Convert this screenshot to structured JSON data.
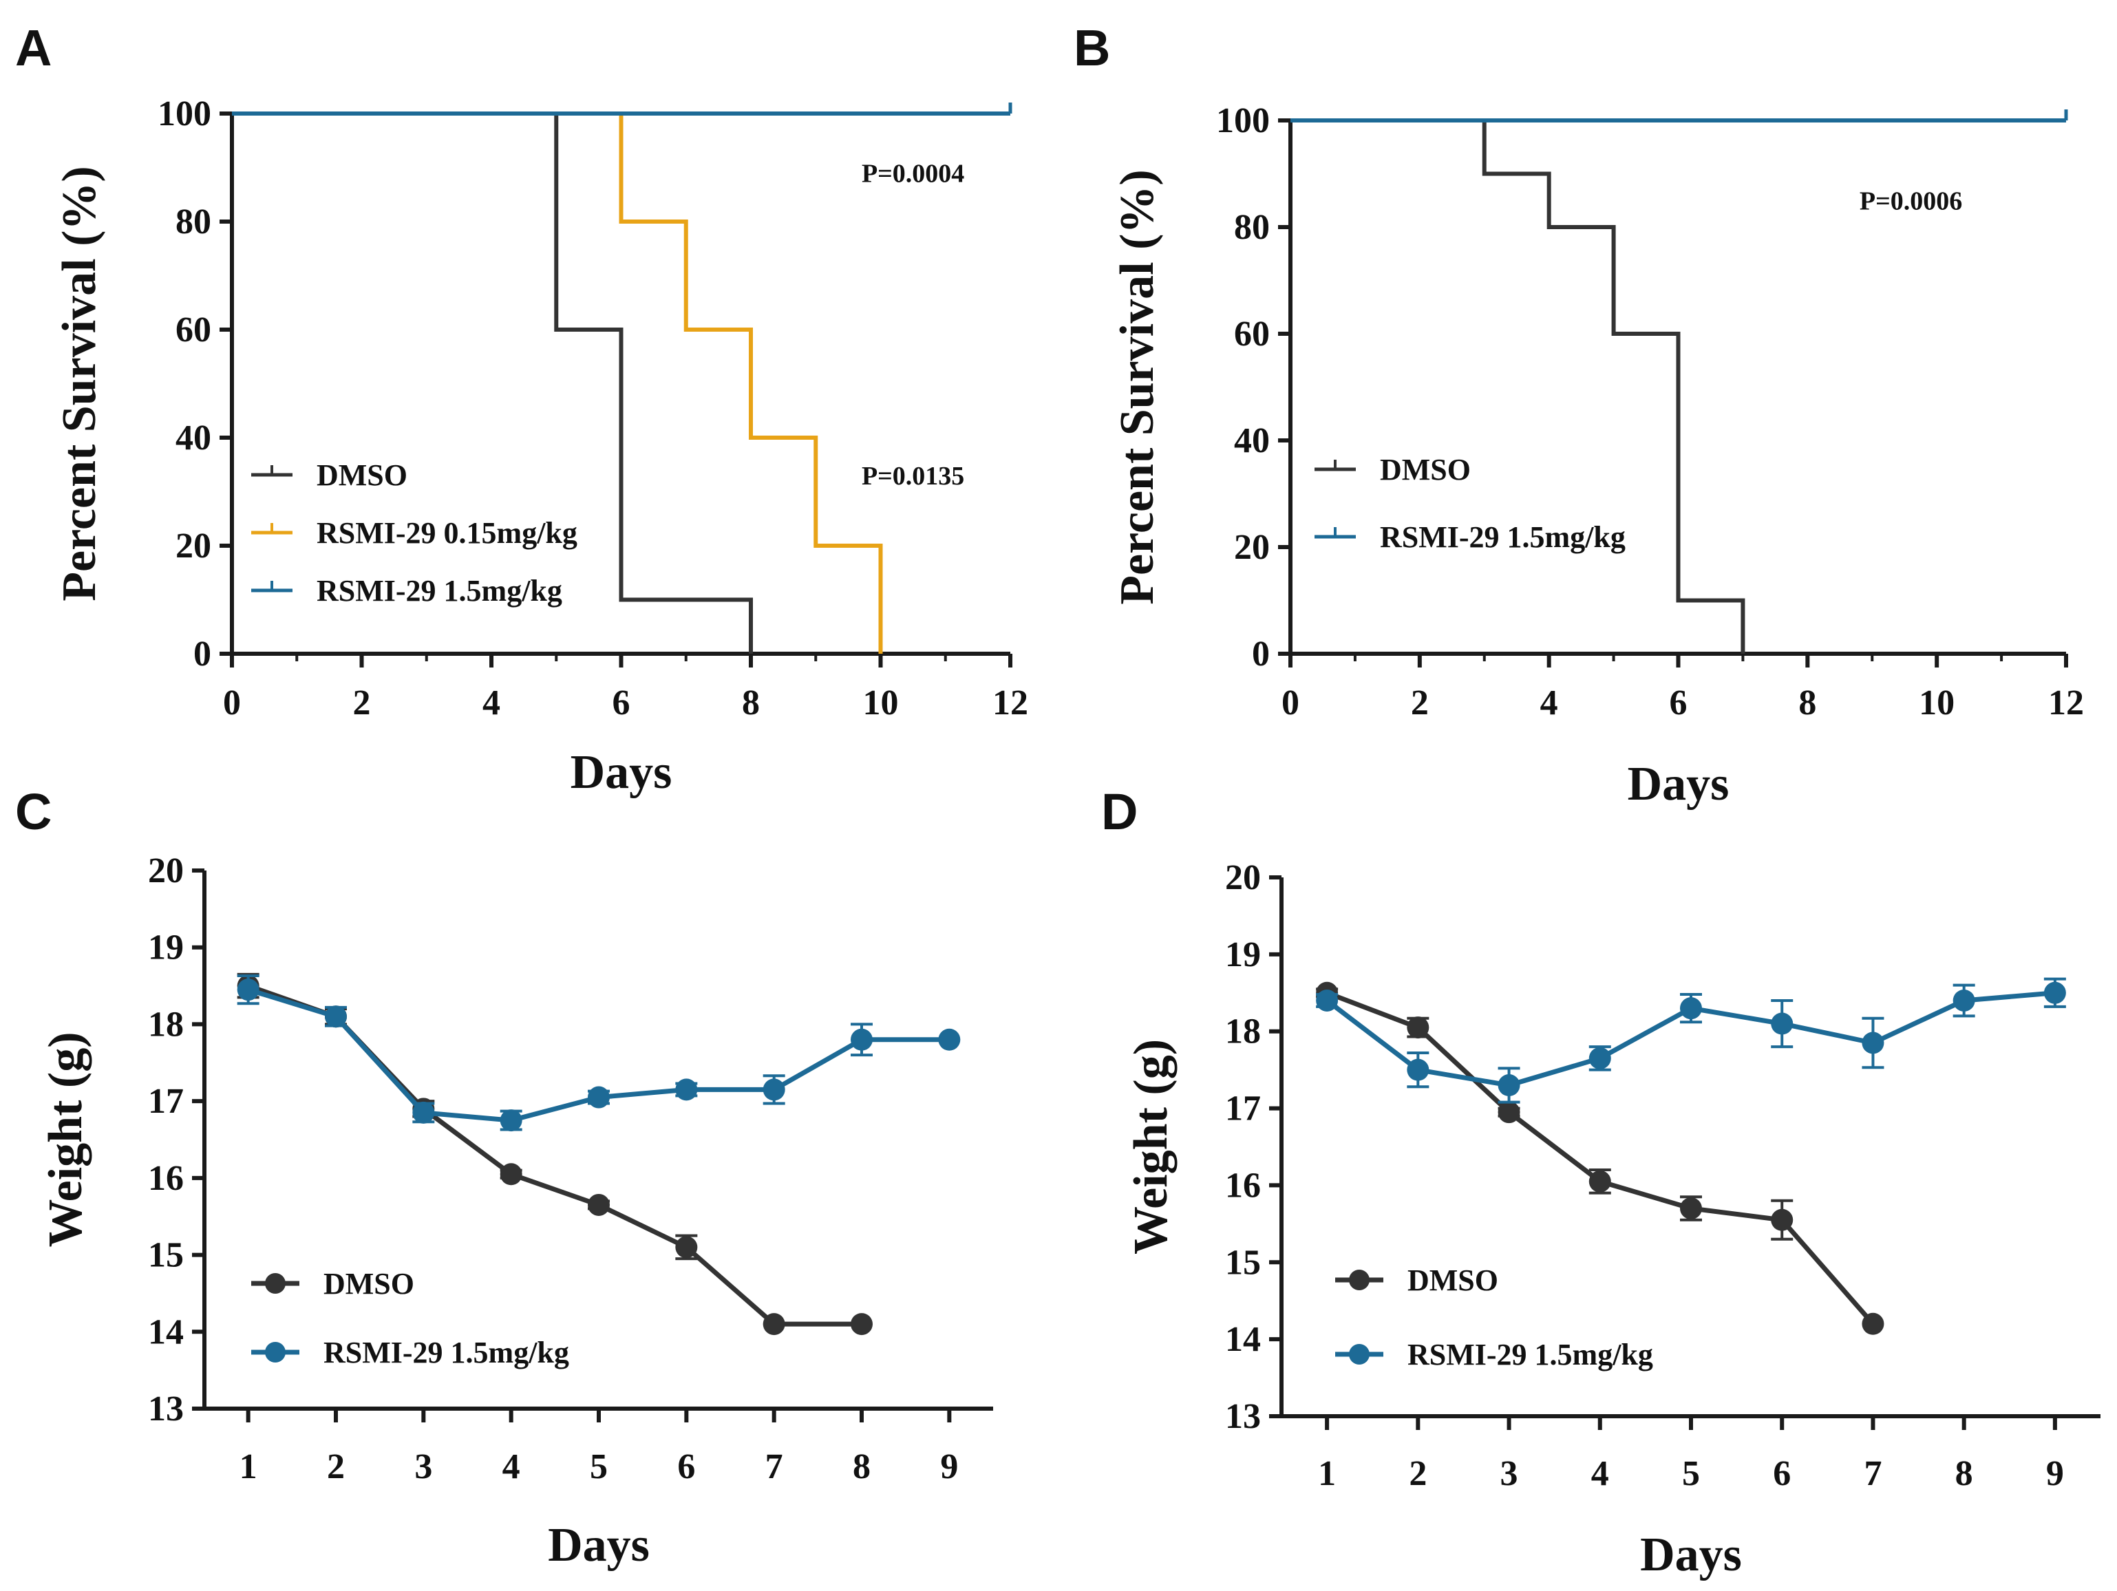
{
  "colors": {
    "dmso": "#333333",
    "low": "#E8A317",
    "high": "#1D6A96",
    "axis": "#1a1a1a"
  },
  "chart_data": [
    {
      "panel": "A",
      "type": "line",
      "subtype": "survival-step",
      "xlabel": "Days",
      "ylabel": "Percent Survival (%)",
      "xlim": [
        0,
        12
      ],
      "ylim": [
        0,
        100
      ],
      "xticks": [
        0,
        2,
        4,
        6,
        8,
        10,
        12
      ],
      "yticks": [
        0,
        20,
        40,
        60,
        80,
        100
      ],
      "series": [
        {
          "name": "DMSO",
          "color_key": "dmso",
          "x": [
            0,
            5,
            6,
            8
          ],
          "y": [
            100,
            60,
            10,
            0
          ],
          "censor_x": null
        },
        {
          "name": "RSMI-29 0.15mg/kg",
          "color_key": "low",
          "x": [
            0,
            6,
            7,
            8,
            9,
            10
          ],
          "y": [
            100,
            80,
            60,
            40,
            20,
            0
          ],
          "censor_x": null
        },
        {
          "name": "RSMI-29 1.5mg/kg",
          "color_key": "high",
          "x": [
            0
          ],
          "y": [
            100
          ],
          "censor_x": 12
        }
      ],
      "annotations": [
        {
          "text": "P=0.0004",
          "x": 10.5,
          "y": 89
        },
        {
          "text": "P=0.0135",
          "x": 10.5,
          "y": 33
        }
      ],
      "legend_position": "bottom-left"
    },
    {
      "panel": "B",
      "type": "line",
      "subtype": "survival-step",
      "xlabel": "Days",
      "ylabel": "Percent Survival (%)",
      "xlim": [
        0,
        12
      ],
      "ylim": [
        0,
        100
      ],
      "xticks": [
        0,
        2,
        4,
        6,
        8,
        10,
        12
      ],
      "yticks": [
        0,
        20,
        40,
        60,
        80,
        100
      ],
      "series": [
        {
          "name": "DMSO",
          "color_key": "dmso",
          "x": [
            0,
            3,
            4,
            5,
            6,
            7
          ],
          "y": [
            100,
            90,
            80,
            60,
            10,
            0
          ],
          "censor_x": null
        },
        {
          "name": "RSMI-29 1.5mg/kg",
          "color_key": "high",
          "x": [
            0
          ],
          "y": [
            100
          ],
          "censor_x": 12
        }
      ],
      "annotations": [
        {
          "text": "P=0.0006",
          "x": 9.6,
          "y": 85
        }
      ],
      "legend_position": "bottom-left"
    },
    {
      "panel": "C",
      "type": "line",
      "subtype": "errorbar",
      "xlabel": "Days",
      "ylabel": "Weight (g)",
      "xlim": [
        0.5,
        9.5
      ],
      "ylim": [
        13,
        20
      ],
      "xticks": [
        1,
        2,
        3,
        4,
        5,
        6,
        7,
        8,
        9
      ],
      "yticks": [
        13,
        14,
        15,
        16,
        17,
        18,
        19,
        20
      ],
      "series": [
        {
          "name": "DMSO",
          "color_key": "dmso",
          "x": [
            1,
            2,
            3,
            4,
            5,
            6,
            7,
            8
          ],
          "y": [
            18.5,
            18.1,
            16.9,
            16.05,
            15.65,
            15.1,
            14.1,
            14.1
          ],
          "err": [
            0.15,
            0.1,
            0.1,
            0.05,
            0.05,
            0.15,
            0.0,
            0.0
          ]
        },
        {
          "name": "RSMI-29 1.5mg/kg",
          "color_key": "high",
          "x": [
            1,
            2,
            3,
            4,
            5,
            6,
            7,
            8,
            9
          ],
          "y": [
            18.45,
            18.1,
            16.85,
            16.75,
            17.05,
            17.15,
            17.15,
            17.8,
            17.8
          ],
          "err": [
            0.18,
            0.12,
            0.12,
            0.12,
            0.08,
            0.08,
            0.18,
            0.2,
            0.0
          ]
        }
      ],
      "legend_position": "bottom-left"
    },
    {
      "panel": "D",
      "type": "line",
      "subtype": "errorbar",
      "xlabel": "Days",
      "ylabel": "Weight (g)",
      "xlim": [
        0.5,
        9.5
      ],
      "ylim": [
        13,
        20
      ],
      "xticks": [
        1,
        2,
        3,
        4,
        5,
        6,
        7,
        8,
        9
      ],
      "yticks": [
        13,
        14,
        15,
        16,
        17,
        18,
        19,
        20
      ],
      "series": [
        {
          "name": "DMSO",
          "color_key": "dmso",
          "x": [
            1,
            2,
            3,
            4,
            5,
            6,
            7
          ],
          "y": [
            18.5,
            18.05,
            16.95,
            16.05,
            15.7,
            15.55,
            14.2
          ],
          "err": [
            0.05,
            0.12,
            0.05,
            0.15,
            0.15,
            0.25,
            0.0
          ]
        },
        {
          "name": "RSMI-29 1.5mg/kg",
          "color_key": "high",
          "x": [
            1,
            2,
            3,
            4,
            5,
            6,
            7,
            8,
            9
          ],
          "y": [
            18.4,
            17.5,
            17.3,
            17.65,
            18.3,
            18.1,
            17.85,
            18.4,
            18.5
          ],
          "err": [
            0.08,
            0.22,
            0.22,
            0.15,
            0.18,
            0.3,
            0.32,
            0.2,
            0.18
          ]
        }
      ],
      "legend_position": "bottom-left"
    }
  ]
}
